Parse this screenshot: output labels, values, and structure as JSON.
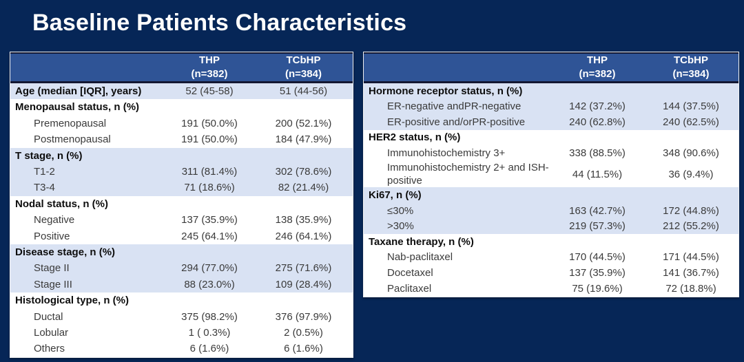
{
  "title": "Baseline Patients Characteristics",
  "colors": {
    "background": "#062657",
    "table_header_bg": "#2f5496",
    "header_text": "#ffffff",
    "shaded_row": "#d9e2f3",
    "white_row": "#ffffff",
    "label_text": "#0d0d0d",
    "value_text": "#3a3a3a",
    "header_divider": "#131732",
    "table_border": "#f2f2f2"
  },
  "tables": [
    {
      "id": "left",
      "header": {
        "label_col": "",
        "col1": [
          "THP",
          "(n=382)"
        ],
        "col2": [
          "TCbHP",
          "(n=384)"
        ]
      },
      "rows": [
        {
          "label": "Age (median [IQR], years)",
          "bold": true,
          "indent": false,
          "thp": "52 (45-58)",
          "tcbhp": "51 (44-56)",
          "shaded": true
        },
        {
          "label": "Menopausal status, n (%)",
          "bold": true,
          "indent": false,
          "thp": "",
          "tcbhp": "",
          "shaded": false
        },
        {
          "label": "Premenopausal",
          "bold": false,
          "indent": true,
          "thp": "191 (50.0%)",
          "tcbhp": "200 (52.1%)",
          "shaded": false
        },
        {
          "label": "Postmenopausal",
          "bold": false,
          "indent": true,
          "thp": "191 (50.0%)",
          "tcbhp": "184 (47.9%)",
          "shaded": false
        },
        {
          "label": "T stage, n (%)",
          "bold": true,
          "indent": false,
          "thp": "",
          "tcbhp": "",
          "shaded": true
        },
        {
          "label": "T1-2",
          "bold": false,
          "indent": true,
          "thp": "311 (81.4%)",
          "tcbhp": "302 (78.6%)",
          "shaded": true
        },
        {
          "label": "T3-4",
          "bold": false,
          "indent": true,
          "thp": "71 (18.6%)",
          "tcbhp": "82 (21.4%)",
          "shaded": true
        },
        {
          "label": "Nodal status, n (%)",
          "bold": true,
          "indent": false,
          "thp": "",
          "tcbhp": "",
          "shaded": false
        },
        {
          "label": "Negative",
          "bold": false,
          "indent": true,
          "thp": "137 (35.9%)",
          "tcbhp": "138 (35.9%)",
          "shaded": false
        },
        {
          "label": "Positive",
          "bold": false,
          "indent": true,
          "thp": "245 (64.1%)",
          "tcbhp": "246 (64.1%)",
          "shaded": false
        },
        {
          "label": "Disease stage, n (%)",
          "bold": true,
          "indent": false,
          "thp": "",
          "tcbhp": "",
          "shaded": true
        },
        {
          "label": "Stage II",
          "bold": false,
          "indent": true,
          "thp": "294 (77.0%)",
          "tcbhp": "275 (71.6%)",
          "shaded": true
        },
        {
          "label": "Stage III",
          "bold": false,
          "indent": true,
          "thp": "88 (23.0%)",
          "tcbhp": "109 (28.4%)",
          "shaded": true
        },
        {
          "label": "Histological type, n (%)",
          "bold": true,
          "indent": false,
          "thp": "",
          "tcbhp": "",
          "shaded": false
        },
        {
          "label": "Ductal",
          "bold": false,
          "indent": true,
          "thp": "375 (98.2%)",
          "tcbhp": "376 (97.9%)",
          "shaded": false
        },
        {
          "label": "Lobular",
          "bold": false,
          "indent": true,
          "thp": "1 ( 0.3%)",
          "tcbhp": "2 (0.5%)",
          "shaded": false
        },
        {
          "label": "Others",
          "bold": false,
          "indent": true,
          "thp": "6 (1.6%)",
          "tcbhp": "6 (1.6%)",
          "shaded": false
        }
      ]
    },
    {
      "id": "right",
      "header": {
        "label_col": "",
        "col1": [
          "THP",
          "(n=382)"
        ],
        "col2": [
          "TCbHP",
          "(n=384)"
        ]
      },
      "rows": [
        {
          "label": "Hormone receptor status, n (%)",
          "bold": true,
          "indent": false,
          "thp": "",
          "tcbhp": "",
          "shaded": true
        },
        {
          "label": "ER-negative andPR-negative",
          "bold": false,
          "indent": true,
          "thp": "142 (37.2%)",
          "tcbhp": "144 (37.5%)",
          "shaded": true
        },
        {
          "label": "ER-positive and/orPR-positive",
          "bold": false,
          "indent": true,
          "thp": "240 (62.8%)",
          "tcbhp": "240 (62.5%)",
          "shaded": true
        },
        {
          "label": "HER2 status, n (%)",
          "bold": true,
          "indent": false,
          "thp": "",
          "tcbhp": "",
          "shaded": false
        },
        {
          "label": "Immunohistochemistry 3+",
          "bold": false,
          "indent": true,
          "thp": "338 (88.5%)",
          "tcbhp": "348 (90.6%)",
          "shaded": false
        },
        {
          "label": "Immunohistochemistry 2+ and ISH-positive",
          "bold": false,
          "indent": true,
          "thp": "44 (11.5%)",
          "tcbhp": "36 (9.4%)",
          "shaded": false
        },
        {
          "label": "Ki67, n (%)",
          "bold": true,
          "indent": false,
          "thp": "",
          "tcbhp": "",
          "shaded": true
        },
        {
          "label": "≤30%",
          "bold": false,
          "indent": true,
          "thp": "163 (42.7%)",
          "tcbhp": "172 (44.8%)",
          "shaded": true
        },
        {
          "label": ">30%",
          "bold": false,
          "indent": true,
          "thp": "219 (57.3%)",
          "tcbhp": "212 (55.2%)",
          "shaded": true
        },
        {
          "label": "Taxane therapy, n (%)",
          "bold": true,
          "indent": false,
          "thp": "",
          "tcbhp": "",
          "shaded": false
        },
        {
          "label": "Nab-paclitaxel",
          "bold": false,
          "indent": true,
          "thp": "170 (44.5%)",
          "tcbhp": "171 (44.5%)",
          "shaded": false
        },
        {
          "label": "Docetaxel",
          "bold": false,
          "indent": true,
          "thp": "137 (35.9%)",
          "tcbhp": "141 (36.7%)",
          "shaded": false
        },
        {
          "label": "Paclitaxel",
          "bold": false,
          "indent": true,
          "thp": "75 (19.6%)",
          "tcbhp": "72 (18.8%)",
          "shaded": false
        }
      ]
    }
  ]
}
